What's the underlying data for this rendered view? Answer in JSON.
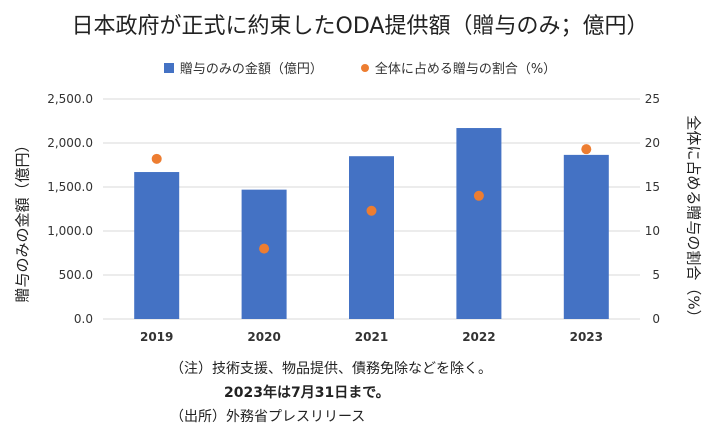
{
  "colors": {
    "bar": "#4472C4",
    "dot": "#ED7D31",
    "grid": "#D9D9D9"
  },
  "chart_data": {
    "type": "bar",
    "title": "日本政府が正式に約束したODA提供額（贈与のみ；億円）",
    "categories": [
      "2019",
      "2020",
      "2021",
      "2022",
      "2023"
    ],
    "series": [
      {
        "name": "贈与のみの金額（億円）",
        "axis": "left",
        "type": "bar",
        "values": [
          1670,
          1470,
          1850,
          2170,
          1865
        ]
      },
      {
        "name": "全体に占める贈与の割合（%）",
        "axis": "right",
        "type": "scatter",
        "values": [
          18.2,
          8.0,
          12.3,
          14.0,
          19.3
        ]
      }
    ],
    "ylabel": "贈与のみの金額（億円）",
    "ylabel_right": "全体に占める贈与の割合（%）",
    "ylim": [
      0,
      2500
    ],
    "ylim_right": [
      0,
      25
    ],
    "yticks": [
      "0.0",
      "500.0",
      "1,000.0",
      "1,500.0",
      "2,000.0",
      "2,500.0"
    ],
    "yticks_right": [
      "0",
      "5",
      "10",
      "15",
      "20",
      "25"
    ],
    "grid": true,
    "legend": "top-center"
  },
  "notes": {
    "line1": "（注）技術支援、物品提供、債務免除などを除く。",
    "line2": "2023年は7月31日まで。",
    "line3": "（出所）外務省プレスリリース"
  }
}
